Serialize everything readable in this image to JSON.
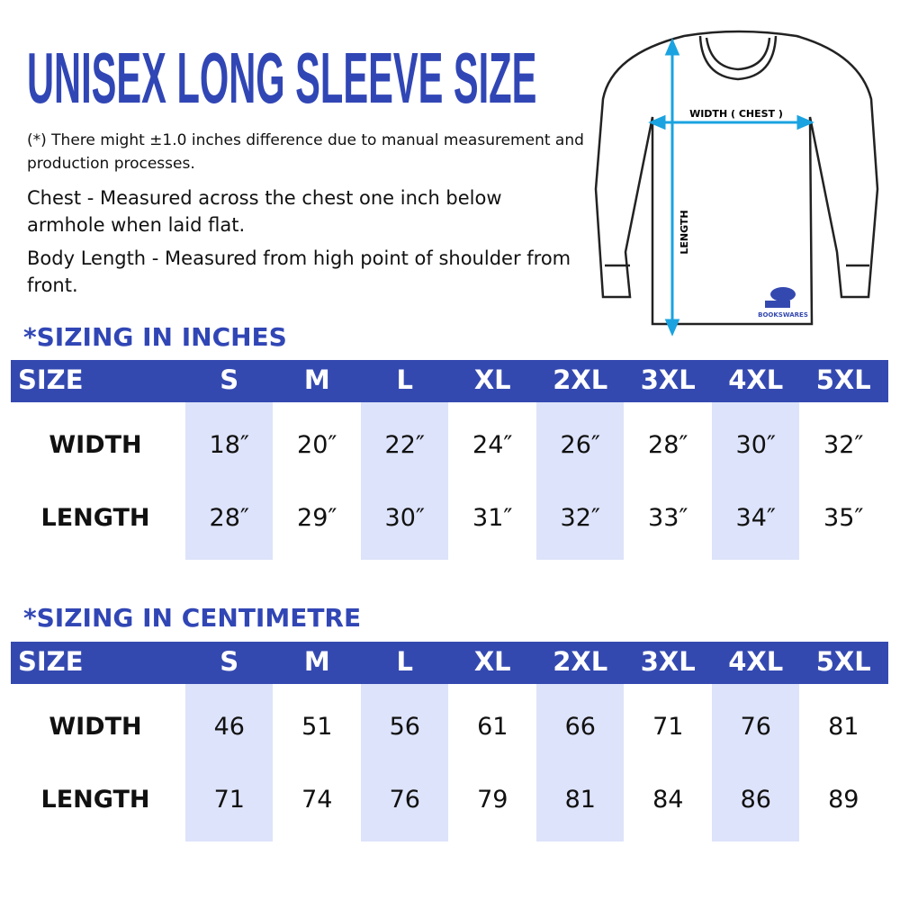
{
  "title": "UNISEX LONG SLEEVE SIZE",
  "notes": {
    "tolerance": "(*) There might ±1.0 inches difference due to manual measurement and production processes.",
    "chest": "Chest - Measured across the chest one inch below armhole when laid flat.",
    "length": "Body Length - Measured from high point of shoulder from front."
  },
  "diagram": {
    "width_label": "WIDTH ( CHEST )",
    "length_label": "LENGTH",
    "brand": "BOOKSWARES",
    "arrow_color": "#1aa3e0"
  },
  "colors": {
    "accent": "#3449b0",
    "shade": "#dde3fa"
  },
  "sizes": [
    "S",
    "M",
    "L",
    "XL",
    "2XL",
    "3XL",
    "4XL",
    "5XL"
  ],
  "inches": {
    "heading": "*SIZING IN INCHES",
    "size_label": "SIZE",
    "rows": [
      {
        "label": "WIDTH",
        "values": [
          "18″",
          "20″",
          "22″",
          "24″",
          "26″",
          "28″",
          "30″",
          "32″"
        ]
      },
      {
        "label": "LENGTH",
        "values": [
          "28″",
          "29″",
          "30″",
          "31″",
          "32″",
          "33″",
          "34″",
          "35″"
        ]
      }
    ]
  },
  "cm": {
    "heading": "*SIZING IN CENTIMETRE",
    "size_label": "SIZE",
    "rows": [
      {
        "label": "WIDTH",
        "values": [
          "46",
          "51",
          "56",
          "61",
          "66",
          "71",
          "76",
          "81"
        ]
      },
      {
        "label": "LENGTH",
        "values": [
          "71",
          "74",
          "76",
          "79",
          "81",
          "84",
          "86",
          "89"
        ]
      }
    ]
  }
}
